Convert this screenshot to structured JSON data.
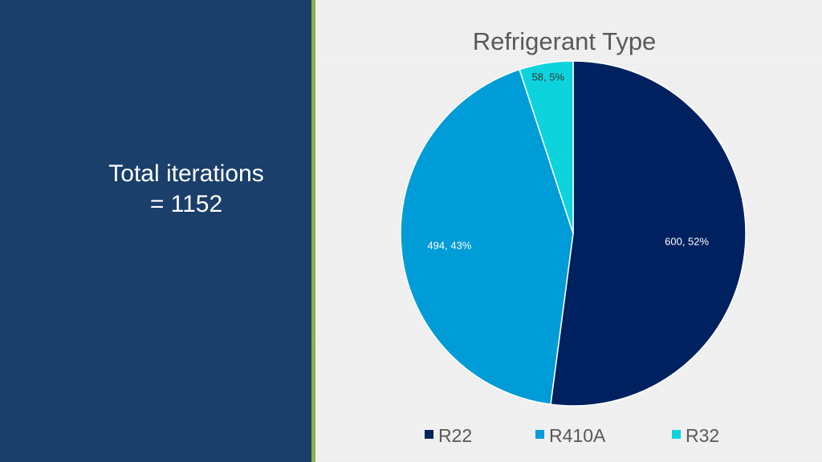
{
  "slide": {
    "left_line1": "Total iterations",
    "left_line2": "= 1152",
    "colors": {
      "panel": "#1a3f6a",
      "accent": "#8cb04a",
      "background": "#f1f1f1"
    }
  },
  "chart_data": {
    "type": "pie",
    "title": "Refrigerant Type",
    "legend_position": "bottom",
    "slices": [
      {
        "label": "R22",
        "value": 600,
        "percent": "52%",
        "data_label": "600, 52%",
        "color": "#00215f"
      },
      {
        "label": "R410A",
        "value": 494,
        "percent": "43%",
        "data_label": "494, 43%",
        "color": "#009cd8"
      },
      {
        "label": "R32",
        "value": 58,
        "percent": "5%",
        "data_label": "58, 5%",
        "color": "#0dd3dd"
      }
    ]
  }
}
